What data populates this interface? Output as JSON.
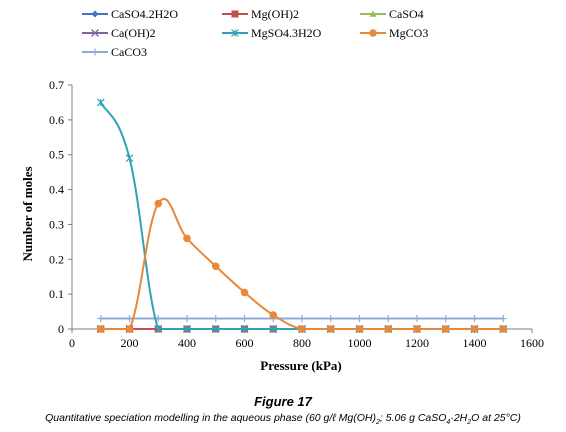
{
  "chart_data": {
    "type": "line",
    "title": "",
    "xlabel": "Pressure (kPa)",
    "ylabel": "Number of moles",
    "xlim": [
      0,
      1600
    ],
    "ylim": [
      0,
      0.7
    ],
    "xticks": [
      0,
      200,
      400,
      600,
      800,
      1000,
      1200,
      1400,
      1600
    ],
    "yticks": [
      0,
      0.1,
      0.2,
      0.3,
      0.4,
      0.5,
      0.6,
      0.7
    ],
    "grid": false,
    "legend_position": "top",
    "series": [
      {
        "name": "CaSO4.2H2O",
        "color": "#4472C4",
        "marker": "diamond",
        "x": [
          100,
          200,
          300,
          400,
          500,
          600,
          700,
          800,
          900,
          1000,
          1100,
          1200,
          1300,
          1400,
          1500
        ],
        "y": [
          0,
          0,
          0,
          0,
          0,
          0,
          0,
          0,
          0,
          0,
          0,
          0,
          0,
          0,
          0
        ]
      },
      {
        "name": "Mg(OH)2",
        "color": "#C0504D",
        "marker": "square",
        "x": [
          100,
          200,
          300,
          400,
          500,
          600,
          700,
          800,
          900,
          1000,
          1100,
          1200,
          1300,
          1400,
          1500
        ],
        "y": [
          0,
          0,
          0,
          0,
          0,
          0,
          0,
          0,
          0,
          0,
          0,
          0,
          0,
          0,
          0
        ]
      },
      {
        "name": "CaSO4",
        "color": "#9BBB59",
        "marker": "triangle",
        "x": [
          100,
          200,
          300,
          400,
          500,
          600,
          700,
          800,
          900,
          1000,
          1100,
          1200,
          1300,
          1400,
          1500
        ],
        "y": [
          0,
          0,
          0,
          0,
          0,
          0,
          0,
          0,
          0,
          0,
          0,
          0,
          0,
          0,
          0
        ]
      },
      {
        "name": "Ca(OH)2",
        "color": "#8064A2",
        "marker": "x",
        "x": [
          100,
          200,
          300,
          400,
          500,
          600,
          700,
          800,
          900,
          1000,
          1100,
          1200,
          1300,
          1400,
          1500
        ],
        "y": [
          0,
          0,
          0,
          0,
          0,
          0,
          0,
          0,
          0,
          0,
          0,
          0,
          0,
          0,
          0
        ]
      },
      {
        "name": "MgSO4.3H2O",
        "color": "#31A2B5",
        "marker": "star",
        "x": [
          100,
          200,
          300,
          400,
          500,
          600,
          700,
          800,
          900,
          1000,
          1100,
          1200,
          1300,
          1400,
          1500
        ],
        "y": [
          0.65,
          0.49,
          0,
          0,
          0,
          0,
          0,
          0,
          0,
          0,
          0,
          0,
          0,
          0,
          0
        ]
      },
      {
        "name": "MgCO3",
        "color": "#E8883A",
        "marker": "circle",
        "x": [
          100,
          200,
          300,
          400,
          500,
          600,
          700,
          800,
          900,
          1000,
          1100,
          1200,
          1300,
          1400,
          1500
        ],
        "y": [
          0,
          0,
          0.36,
          0.26,
          0.18,
          0.105,
          0.04,
          0,
          0,
          0,
          0,
          0,
          0,
          0,
          0
        ]
      },
      {
        "name": "CaCO3",
        "color": "#8EAADB",
        "marker": "plus",
        "x": [
          100,
          200,
          300,
          400,
          500,
          600,
          700,
          800,
          900,
          1000,
          1100,
          1200,
          1300,
          1400,
          1500
        ],
        "y": [
          0.03,
          0.03,
          0.03,
          0.03,
          0.03,
          0.03,
          0.03,
          0.03,
          0.03,
          0.03,
          0.03,
          0.03,
          0.03,
          0.03,
          0.03
        ]
      }
    ]
  },
  "caption": {
    "figure": "Figure 17",
    "text_pre": "Quantitative speciation modelling in the aqueous phase (60 g/ℓ Mg(OH)",
    "sub1": "2",
    "text_mid": "; 5.06 g CaSO",
    "sub2": "4",
    "text_mid2": "·2H",
    "sub3": "2",
    "text_post": "O at 25°C)"
  }
}
